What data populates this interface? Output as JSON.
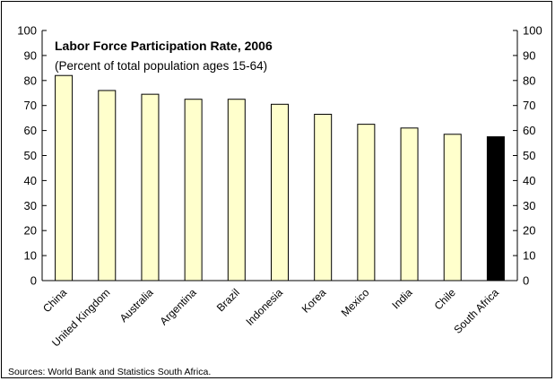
{
  "chart_data": {
    "type": "bar",
    "title": "Labor Force Participation Rate, 2006",
    "subtitle": "(Percent of total population ages 15-64)",
    "categories": [
      "China",
      "United Kingdom",
      "Australia",
      "Argentina",
      "Brazil",
      "Indonesia",
      "Korea",
      "Mexico",
      "India",
      "Chile",
      "South Africa"
    ],
    "values": [
      82,
      76,
      74.5,
      72.5,
      72.5,
      70.5,
      66.5,
      62.5,
      61,
      58.5,
      57.5
    ],
    "highlight": "South Africa",
    "ylim": [
      0,
      100
    ],
    "yticks": [
      0,
      10,
      20,
      30,
      40,
      50,
      60,
      70,
      80,
      90,
      100
    ],
    "y_axis_left": true,
    "y_axis_right": true,
    "grid": false,
    "colors": {
      "bar": "#FFFFCC",
      "bar_outline": "#000000",
      "highlight": "#000000"
    },
    "source": "Sources: World Bank and Statistics South Africa."
  }
}
